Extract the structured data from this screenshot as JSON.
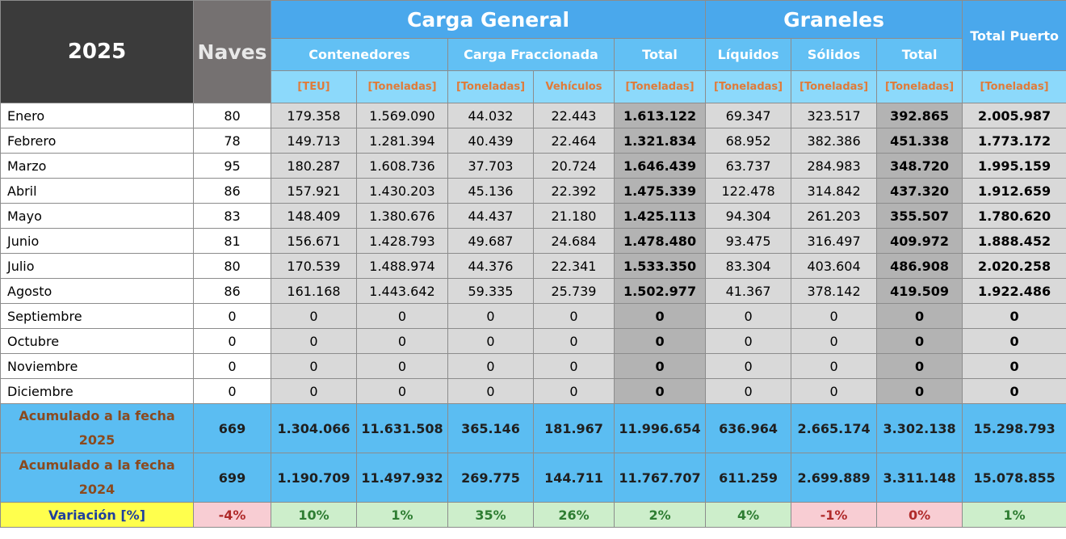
{
  "header": {
    "year": "2025",
    "naves": "Naves",
    "carga_general": "Carga General",
    "graneles": "Graneles",
    "total_puerto": "Total Puerto",
    "contenedores": "Contenedores",
    "carga_fraccionada": "Carga Fraccionada",
    "total_cg": "Total",
    "liquidos": "Líquidos",
    "solidos": "Sólidos",
    "total_gr": "Total",
    "units": [
      "[TEU]",
      "[Toneladas]",
      "[Toneladas]",
      "Vehículos",
      "[Toneladas]",
      "[Toneladas]",
      "[Toneladas]",
      "[Toneladas]",
      "[Toneladas]"
    ]
  },
  "rows": [
    {
      "month": "Enero",
      "cells": [
        "80",
        "179.358",
        "1.569.090",
        "44.032",
        "22.443",
        "1.613.122",
        "69.347",
        "323.517",
        "392.865",
        "2.005.987"
      ]
    },
    {
      "month": "Febrero",
      "cells": [
        "78",
        "149.713",
        "1.281.394",
        "40.439",
        "22.464",
        "1.321.834",
        "68.952",
        "382.386",
        "451.338",
        "1.773.172"
      ]
    },
    {
      "month": "Marzo",
      "cells": [
        "95",
        "180.287",
        "1.608.736",
        "37.703",
        "20.724",
        "1.646.439",
        "63.737",
        "284.983",
        "348.720",
        "1.995.159"
      ]
    },
    {
      "month": "Abril",
      "cells": [
        "86",
        "157.921",
        "1.430.203",
        "45.136",
        "22.392",
        "1.475.339",
        "122.478",
        "314.842",
        "437.320",
        "1.912.659"
      ]
    },
    {
      "month": "Mayo",
      "cells": [
        "83",
        "148.409",
        "1.380.676",
        "44.437",
        "21.180",
        "1.425.113",
        "94.304",
        "261.203",
        "355.507",
        "1.780.620"
      ]
    },
    {
      "month": "Junio",
      "cells": [
        "81",
        "156.671",
        "1.428.793",
        "49.687",
        "24.684",
        "1.478.480",
        "93.475",
        "316.497",
        "409.972",
        "1.888.452"
      ]
    },
    {
      "month": "Julio",
      "cells": [
        "80",
        "170.539",
        "1.488.974",
        "44.376",
        "22.341",
        "1.533.350",
        "83.304",
        "403.604",
        "486.908",
        "2.020.258"
      ]
    },
    {
      "month": "Agosto",
      "cells": [
        "86",
        "161.168",
        "1.443.642",
        "59.335",
        "25.739",
        "1.502.977",
        "41.367",
        "378.142",
        "419.509",
        "1.922.486"
      ]
    },
    {
      "month": "Septiembre",
      "cells": [
        "0",
        "0",
        "0",
        "0",
        "0",
        "0",
        "0",
        "0",
        "0",
        "0"
      ]
    },
    {
      "month": "Octubre",
      "cells": [
        "0",
        "0",
        "0",
        "0",
        "0",
        "0",
        "0",
        "0",
        "0",
        "0"
      ]
    },
    {
      "month": "Noviembre",
      "cells": [
        "0",
        "0",
        "0",
        "0",
        "0",
        "0",
        "0",
        "0",
        "0",
        "0"
      ]
    },
    {
      "month": "Diciembre",
      "cells": [
        "0",
        "0",
        "0",
        "0",
        "0",
        "0",
        "0",
        "0",
        "0",
        "0"
      ]
    }
  ],
  "accumulated": [
    {
      "label_line1": "Acumulado a la fecha",
      "label_line2": "2025",
      "cells": [
        "669",
        "1.304.066",
        "11.631.508",
        "365.146",
        "181.967",
        "11.996.654",
        "636.964",
        "2.665.174",
        "3.302.138",
        "15.298.793"
      ]
    },
    {
      "label_line1": "Acumulado a la fecha",
      "label_line2": "2024",
      "cells": [
        "699",
        "1.190.709",
        "11.497.932",
        "269.775",
        "144.711",
        "11.767.707",
        "611.259",
        "2.699.889",
        "3.311.148",
        "15.078.855"
      ]
    }
  ],
  "variation": {
    "label": "Variación [%]",
    "cells": [
      "-4%",
      "10%",
      "1%",
      "35%",
      "26%",
      "2%",
      "4%",
      "-1%",
      "0%",
      "1%"
    ]
  },
  "colors": {
    "header_dark": "#3b3b3b",
    "header_naves": "#757171",
    "header_blue": "#4aa8ec",
    "subheader_blue": "#62c0f4",
    "unit_blue": "#8cd9fb",
    "accumulated_blue": "#5bbdf2",
    "variation_yellow": "#ffff4d",
    "negative_pink": "#f8cdd3",
    "positive_green": "#cdeecb"
  }
}
